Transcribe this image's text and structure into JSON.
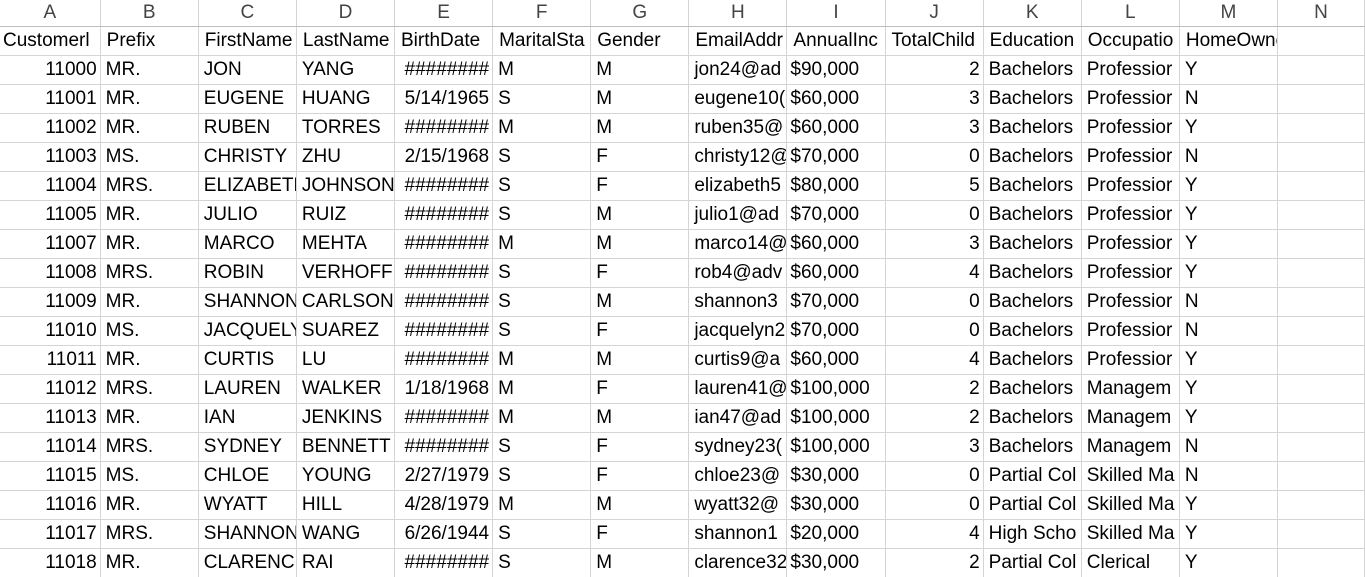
{
  "columns": [
    "A",
    "B",
    "C",
    "D",
    "E",
    "F",
    "G",
    "H",
    "I",
    "J",
    "K",
    "L",
    "M",
    "N"
  ],
  "headers": [
    "Customerl",
    "Prefix",
    "FirstName",
    "LastName",
    "BirthDate",
    "MaritalSta",
    "Gender",
    "EmailAddr",
    "AnnualInc",
    "TotalChild",
    "Education",
    "Occupatio",
    "HomeOwner",
    ""
  ],
  "rows": [
    [
      "11000",
      "MR.",
      "JON",
      "YANG",
      "########",
      "M",
      "M",
      "jon24@ad",
      "$90,000",
      "2",
      "Bachelors",
      "Professior",
      "Y"
    ],
    [
      "11001",
      "MR.",
      "EUGENE",
      "HUANG",
      "5/14/1965",
      "S",
      "M",
      "eugene10(",
      "$60,000",
      "3",
      "Bachelors",
      "Professior",
      "N"
    ],
    [
      "11002",
      "MR.",
      "RUBEN",
      "TORRES",
      "########",
      "M",
      "M",
      "ruben35@",
      "$60,000",
      "3",
      "Bachelors",
      "Professior",
      "Y"
    ],
    [
      "11003",
      "MS.",
      "CHRISTY",
      "ZHU",
      "2/15/1968",
      "S",
      "F",
      "christy12@",
      "$70,000",
      "0",
      "Bachelors",
      "Professior",
      "N"
    ],
    [
      "11004",
      "MRS.",
      "ELIZABETH",
      "JOHNSON",
      "########",
      "S",
      "F",
      "elizabeth5",
      "$80,000",
      "5",
      "Bachelors",
      "Professior",
      "Y"
    ],
    [
      "11005",
      "MR.",
      "JULIO",
      "RUIZ",
      "########",
      "S",
      "M",
      "julio1@ad",
      "$70,000",
      "0",
      "Bachelors",
      "Professior",
      "Y"
    ],
    [
      "11007",
      "MR.",
      "MARCO",
      "MEHTA",
      "########",
      "M",
      "M",
      "marco14@",
      "$60,000",
      "3",
      "Bachelors",
      "Professior",
      "Y"
    ],
    [
      "11008",
      "MRS.",
      "ROBIN",
      "VERHOFF",
      "########",
      "S",
      "F",
      "rob4@adv",
      "$60,000",
      "4",
      "Bachelors",
      "Professior",
      "Y"
    ],
    [
      "11009",
      "MR.",
      "SHANNON",
      "CARLSON",
      "########",
      "S",
      "M",
      "shannon3",
      "$70,000",
      "0",
      "Bachelors",
      "Professior",
      "N"
    ],
    [
      "11010",
      "MS.",
      "JACQUELY",
      "SUAREZ",
      "########",
      "S",
      "F",
      "jacquelyn2",
      "$70,000",
      "0",
      "Bachelors",
      "Professior",
      "N"
    ],
    [
      "11011",
      "MR.",
      "CURTIS",
      "LU",
      "########",
      "M",
      "M",
      "curtis9@a",
      "$60,000",
      "4",
      "Bachelors",
      "Professior",
      "Y"
    ],
    [
      "11012",
      "MRS.",
      "LAUREN",
      "WALKER",
      "1/18/1968",
      "M",
      "F",
      "lauren41@",
      "$100,000",
      "2",
      "Bachelors",
      "Managem",
      "Y"
    ],
    [
      "11013",
      "MR.",
      "IAN",
      "JENKINS",
      "########",
      "M",
      "M",
      "ian47@ad",
      "$100,000",
      "2",
      "Bachelors",
      "Managem",
      "Y"
    ],
    [
      "11014",
      "MRS.",
      "SYDNEY",
      "BENNETT",
      "########",
      "S",
      "F",
      "sydney23(",
      "$100,000",
      "3",
      "Bachelors",
      "Managem",
      "N"
    ],
    [
      "11015",
      "MS.",
      "CHLOE",
      "YOUNG",
      "2/27/1979",
      "S",
      "F",
      "chloe23@",
      "$30,000",
      "0",
      "Partial Col",
      "Skilled Ma",
      "N"
    ],
    [
      "11016",
      "MR.",
      "WYATT",
      "HILL",
      "4/28/1979",
      "M",
      "M",
      "wyatt32@",
      "$30,000",
      "0",
      "Partial Col",
      "Skilled Ma",
      "Y"
    ],
    [
      "11017",
      "MRS.",
      "SHANNON",
      "WANG",
      "6/26/1944",
      "S",
      "F",
      "shannon1",
      "$20,000",
      "4",
      "High Scho",
      "Skilled Ma",
      "Y"
    ],
    [
      "11018",
      "MR.",
      "CLARENCE",
      "RAI",
      "########",
      "S",
      "M",
      "clarence32",
      "$30,000",
      "2",
      "Partial Col",
      "Clerical",
      "Y"
    ]
  ]
}
